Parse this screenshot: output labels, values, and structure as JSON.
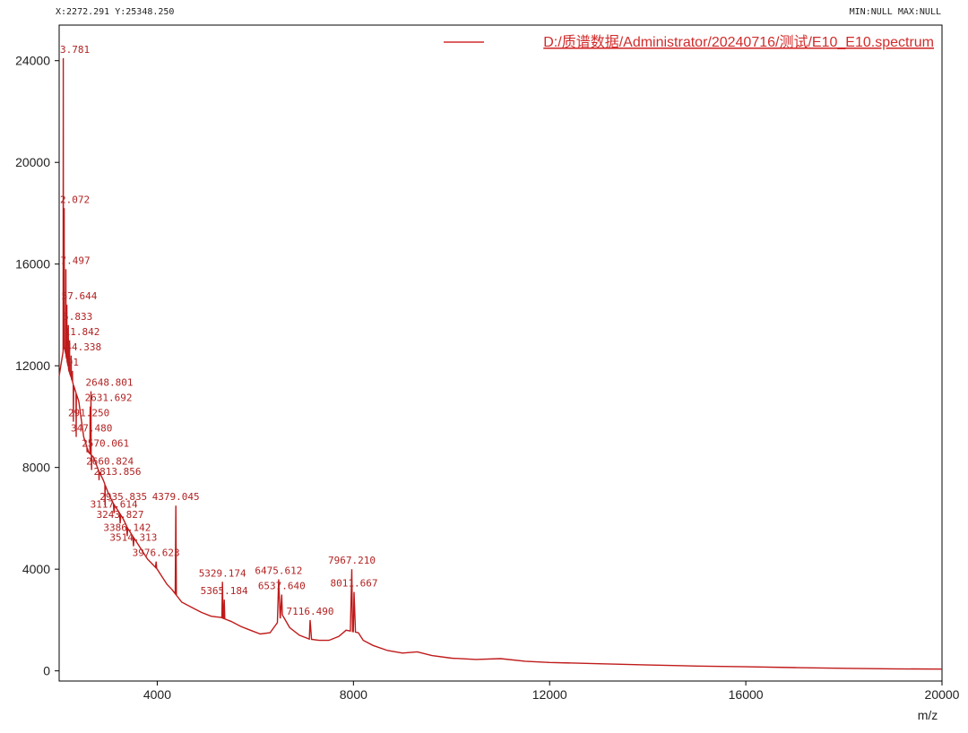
{
  "readout": {
    "coords": "X:2272.291  Y:25348.250",
    "minmax": "MIN:NULL  MAX:NULL"
  },
  "colors": {
    "trace": "#c01a1a",
    "label": "#b22222",
    "legend": "#d22b2b",
    "axis": "#000000"
  },
  "chart_data": {
    "type": "line",
    "title": "",
    "xlabel": "m/z",
    "ylabel": "",
    "xlim": [
      2000,
      20000
    ],
    "ylim": [
      -400,
      25400
    ],
    "xticks": [
      4000,
      8000,
      12000,
      16000,
      20000
    ],
    "yticks": [
      0,
      4000,
      8000,
      12000,
      16000,
      20000,
      24000
    ],
    "legend": {
      "position": "top-right",
      "entries": [
        "D:/质谱数据/Administrator/20240716/测试/E10_E10.spectrum"
      ]
    },
    "series": [
      {
        "name": "D:/质谱数据/Administrator/20240716/测试/E10_E10.spectrum",
        "baseline": [
          [
            2000,
            11600
          ],
          [
            2100,
            12800
          ],
          [
            2200,
            11800
          ],
          [
            2300,
            11200
          ],
          [
            2400,
            10600
          ],
          [
            2500,
            9200
          ],
          [
            2600,
            8600
          ],
          [
            2700,
            8400
          ],
          [
            2800,
            7900
          ],
          [
            2900,
            7500
          ],
          [
            3000,
            7000
          ],
          [
            3100,
            6600
          ],
          [
            3200,
            6300
          ],
          [
            3300,
            6000
          ],
          [
            3400,
            5600
          ],
          [
            3500,
            5300
          ],
          [
            3600,
            5000
          ],
          [
            3700,
            4700
          ],
          [
            3800,
            4400
          ],
          [
            3900,
            4200
          ],
          [
            4000,
            4000
          ],
          [
            4100,
            3700
          ],
          [
            4200,
            3400
          ],
          [
            4300,
            3200
          ],
          [
            4500,
            2700
          ],
          [
            4700,
            2500
          ],
          [
            4900,
            2300
          ],
          [
            5100,
            2150
          ],
          [
            5300,
            2100
          ],
          [
            5500,
            1950
          ],
          [
            5700,
            1750
          ],
          [
            5900,
            1600
          ],
          [
            6100,
            1450
          ],
          [
            6300,
            1500
          ],
          [
            6450,
            1900
          ],
          [
            6550,
            2200
          ],
          [
            6700,
            1700
          ],
          [
            6900,
            1400
          ],
          [
            7100,
            1250
          ],
          [
            7300,
            1200
          ],
          [
            7500,
            1200
          ],
          [
            7700,
            1350
          ],
          [
            7850,
            1600
          ],
          [
            8100,
            1500
          ],
          [
            8200,
            1200
          ],
          [
            8400,
            1000
          ],
          [
            8700,
            800
          ],
          [
            9000,
            700
          ],
          [
            9300,
            750
          ],
          [
            9600,
            600
          ],
          [
            10000,
            500
          ],
          [
            10500,
            450
          ],
          [
            11000,
            480
          ],
          [
            11500,
            380
          ],
          [
            12000,
            330
          ],
          [
            13000,
            280
          ],
          [
            14000,
            230
          ],
          [
            15000,
            190
          ],
          [
            16000,
            160
          ],
          [
            17000,
            130
          ],
          [
            18000,
            100
          ],
          [
            19000,
            80
          ],
          [
            20000,
            70
          ]
        ],
        "peaks": [
          {
            "x": 2083.781,
            "y": 24100
          },
          {
            "x": 2102.072,
            "y": 18200
          },
          {
            "x": 2137.497,
            "y": 15800
          },
          {
            "x": 2157.644,
            "y": 14400
          },
          {
            "x": 2185.833,
            "y": 13600
          },
          {
            "x": 2211.842,
            "y": 13000
          },
          {
            "x": 2244.338,
            "y": 12400
          },
          {
            "x": 2270.191,
            "y": 11800
          },
          {
            "x": 2648.801,
            "y": 11000
          },
          {
            "x": 2631.692,
            "y": 10400
          },
          {
            "x": 2291.25,
            "y": 9800
          },
          {
            "x": 2347.48,
            "y": 9200
          },
          {
            "x": 2570.061,
            "y": 8600
          },
          {
            "x": 2660.824,
            "y": 7900
          },
          {
            "x": 2813.856,
            "y": 7500
          },
          {
            "x": 2935.835,
            "y": 6500
          },
          {
            "x": 3117.614,
            "y": 6200
          },
          {
            "x": 3243.827,
            "y": 5800
          },
          {
            "x": 3386.142,
            "y": 5300
          },
          {
            "x": 3514.313,
            "y": 4900
          },
          {
            "x": 3976.623,
            "y": 4300
          },
          {
            "x": 4379.045,
            "y": 6500
          },
          {
            "x": 5329.174,
            "y": 3500
          },
          {
            "x": 5365.184,
            "y": 2800
          },
          {
            "x": 6475.612,
            "y": 3600
          },
          {
            "x": 6537.64,
            "y": 3000
          },
          {
            "x": 7116.49,
            "y": 2000
          },
          {
            "x": 7967.21,
            "y": 4000
          },
          {
            "x": 8011.667,
            "y": 3100
          }
        ],
        "peak_labels": [
          {
            "x": 2083.781,
            "y": 24100,
            "text": "3.781"
          },
          {
            "x": 2102.072,
            "y": 18200,
            "text": "2.072"
          },
          {
            "x": 2137.497,
            "y": 15800,
            "text": "7.497"
          },
          {
            "x": 2157.644,
            "y": 14400,
            "text": "57.644"
          },
          {
            "x": 2185.833,
            "y": 13600,
            "text": "5.833"
          },
          {
            "x": 2211.842,
            "y": 13000,
            "text": "11.842"
          },
          {
            "x": 2244.338,
            "y": 12400,
            "text": "44.338"
          },
          {
            "x": 2270.191,
            "y": 11800,
            "text": "91"
          },
          {
            "x": 2648.801,
            "y": 11000,
            "text": "2648.801"
          },
          {
            "x": 2631.692,
            "y": 10400,
            "text": "2631.692"
          },
          {
            "x": 2291.25,
            "y": 9800,
            "text": "291.250"
          },
          {
            "x": 2347.48,
            "y": 9200,
            "text": "347.480"
          },
          {
            "x": 2570.061,
            "y": 8600,
            "text": "2570.061"
          },
          {
            "x": 2660.824,
            "y": 7900,
            "text": "2660.824"
          },
          {
            "x": 2813.856,
            "y": 7500,
            "text": "2813.856"
          },
          {
            "x": 2935.835,
            "y": 6500,
            "text": "2935.835"
          },
          {
            "x": 3117.614,
            "y": 6200,
            "text": "3117.614"
          },
          {
            "x": 3243.827,
            "y": 5800,
            "text": "3243.827"
          },
          {
            "x": 3386.142,
            "y": 5300,
            "text": "3386.142"
          },
          {
            "x": 3514.313,
            "y": 4900,
            "text": "3514.313"
          },
          {
            "x": 3976.623,
            "y": 4300,
            "text": "3976.623"
          },
          {
            "x": 4379.045,
            "y": 6500,
            "text": "4379.045"
          },
          {
            "x": 5329.174,
            "y": 3500,
            "text": "5329.174"
          },
          {
            "x": 5365.184,
            "y": 2800,
            "text": "5365.184"
          },
          {
            "x": 6475.612,
            "y": 3600,
            "text": "6475.612"
          },
          {
            "x": 6537.64,
            "y": 3000,
            "text": "6537.640"
          },
          {
            "x": 7116.49,
            "y": 2000,
            "text": "7116.490"
          },
          {
            "x": 7967.21,
            "y": 4000,
            "text": "7967.210"
          },
          {
            "x": 8011.667,
            "y": 3100,
            "text": "8011.667"
          }
        ]
      }
    ]
  }
}
